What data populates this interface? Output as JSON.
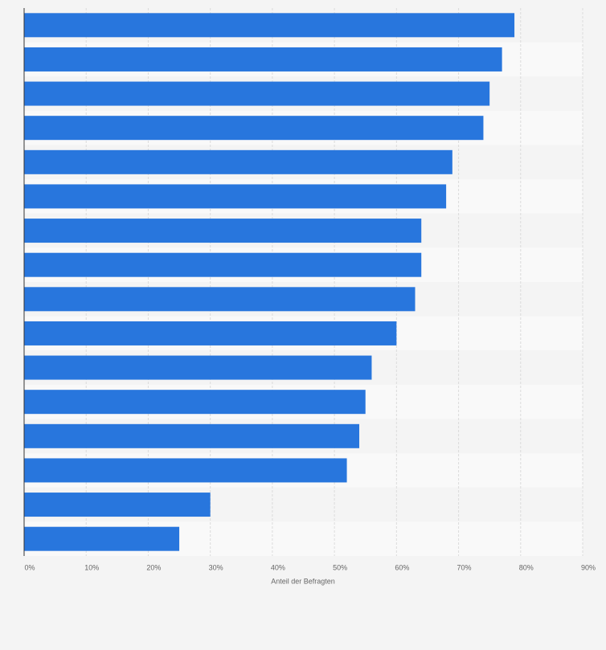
{
  "chart_data": {
    "type": "barh",
    "categories": [
      null,
      null,
      null,
      null,
      null,
      null,
      null,
      null,
      null,
      null,
      null,
      null,
      null,
      null,
      null,
      null
    ],
    "values": [
      79,
      77,
      75,
      74,
      69,
      68,
      64,
      64,
      63,
      60,
      56,
      55,
      54,
      52,
      30,
      25
    ],
    "color": "#2876dd",
    "xlabel": "Anteil der Befragten",
    "xlim": [
      0,
      90
    ],
    "xticks": [
      {
        "value": 0,
        "label": "0%"
      },
      {
        "value": 10,
        "label": "10%"
      },
      {
        "value": 20,
        "label": "20%"
      },
      {
        "value": 30,
        "label": "30%"
      },
      {
        "value": 40,
        "label": "40%"
      },
      {
        "value": 50,
        "label": "50%"
      },
      {
        "value": 60,
        "label": "60%"
      },
      {
        "value": 70,
        "label": "70%"
      },
      {
        "value": 80,
        "label": "80%"
      },
      {
        "value": 90,
        "label": "90%"
      }
    ],
    "grid": true
  }
}
